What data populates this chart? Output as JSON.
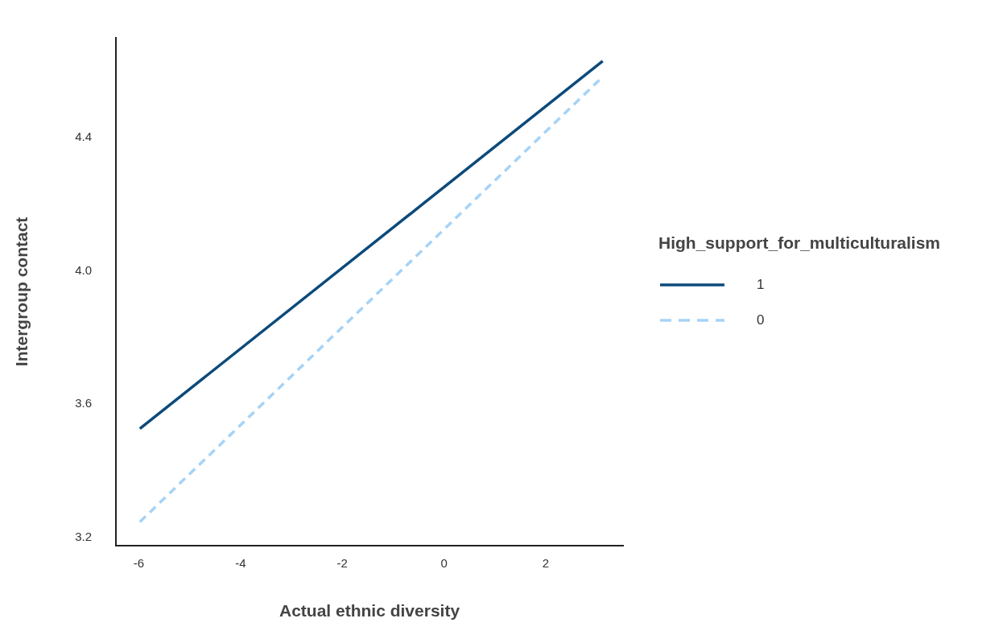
{
  "chart_data": {
    "type": "line",
    "xlabel": "Actual ethnic diversity",
    "ylabel": "Intergroup contact",
    "legend_title": "High_support_for_multiculturalism",
    "xlim": [
      -6.45,
      3.52
    ],
    "xticks": [
      -6,
      -4,
      -2,
      0,
      2
    ],
    "ylim": [
      3.175,
      4.7
    ],
    "yticks": [
      3.2,
      3.6,
      {
        "value": 4,
        "label": "4.0"
      },
      4.4
    ],
    "grid": false,
    "legend": "right",
    "marker": "none",
    "series": [
      {
        "name": "1",
        "color": "#0c4a7a",
        "x": [
          -5.98,
          3.12
        ],
        "values": [
          3.526,
          4.63
        ],
        "line_style": "solid"
      },
      {
        "name": "0",
        "color": "#a6d3f7",
        "x": [
          -5.98,
          3.1
        ],
        "values": [
          3.246,
          4.58
        ],
        "line_style": "dashed"
      }
    ]
  }
}
